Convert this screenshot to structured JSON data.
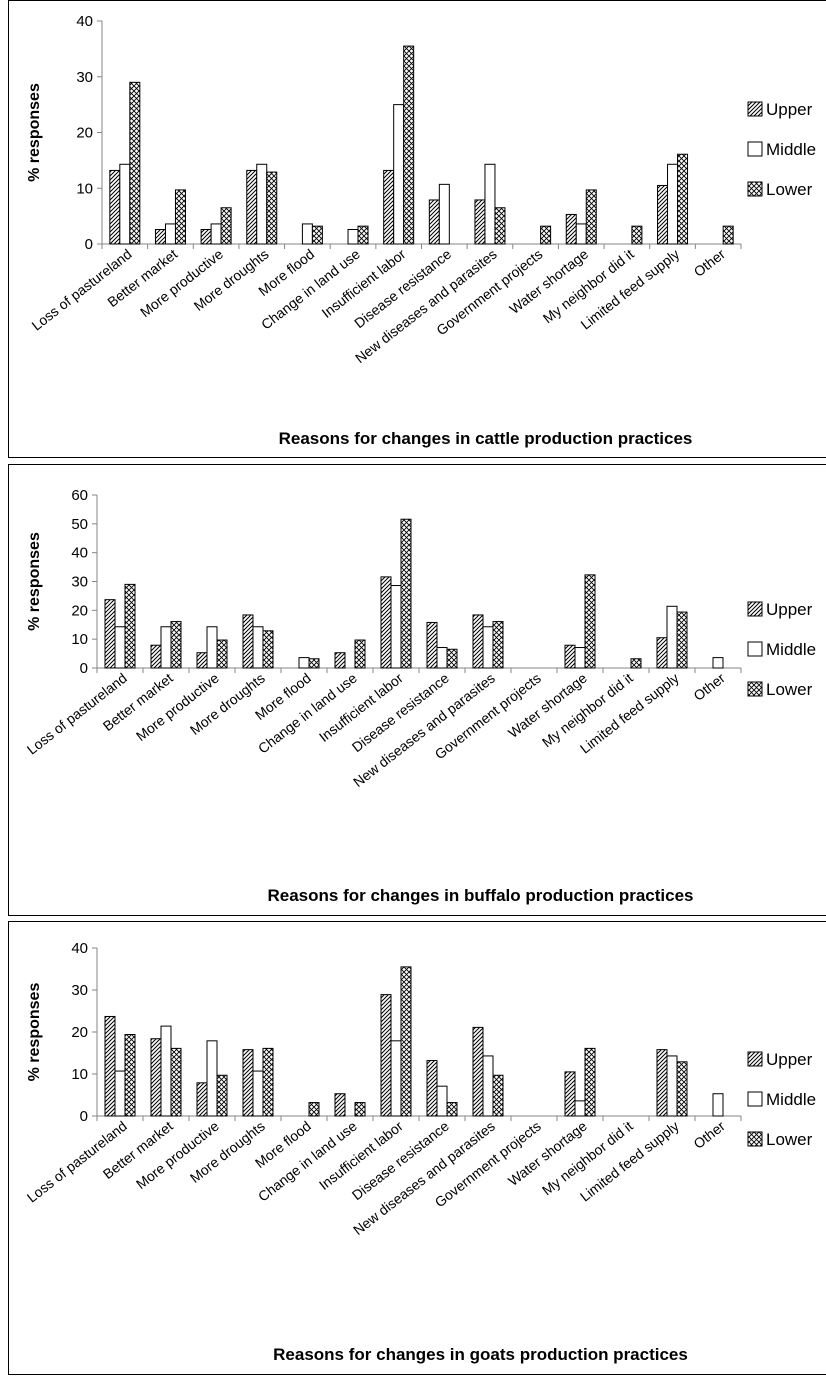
{
  "chart_data": [
    {
      "type": "bar",
      "title": "",
      "xlabel": "Reasons for changes in cattle production practices",
      "ylabel": "% responses",
      "ylim": [
        0,
        40
      ],
      "yticks": [
        "0",
        "10",
        "20",
        "30",
        "40"
      ],
      "categories": [
        "Loss of pastureland",
        "Better market",
        "More productive",
        "More droughts",
        "More flood",
        "Change in land use",
        "Insufficient labor",
        "Disease resistance",
        "New diseases and parasites",
        "Government projects",
        "Water shortage",
        "My neighbor did it",
        "Limited feed supply",
        "Other"
      ],
      "series": [
        {
          "name": "Upper",
          "pattern": "diag",
          "values": [
            13.2,
            2.6,
            2.6,
            13.2,
            0,
            0,
            13.2,
            7.9,
            7.9,
            0,
            5.3,
            0,
            10.5,
            0
          ]
        },
        {
          "name": "Middle",
          "pattern": "none",
          "values": [
            14.3,
            3.6,
            3.6,
            14.3,
            3.6,
            2.6,
            25.0,
            10.7,
            14.3,
            0,
            3.6,
            0,
            14.3,
            0
          ]
        },
        {
          "name": "Lower",
          "pattern": "cross",
          "values": [
            29.0,
            9.7,
            6.5,
            12.9,
            3.2,
            3.2,
            35.5,
            0,
            6.5,
            3.2,
            9.7,
            3.2,
            16.1,
            3.2
          ]
        }
      ],
      "legend_position": "right"
    },
    {
      "type": "bar",
      "title": "",
      "xlabel": "Reasons for changes in buffalo production practices",
      "ylabel": "% responses",
      "ylim": [
        0,
        60
      ],
      "yticks": [
        "0",
        "10",
        "20",
        "30",
        "40",
        "50",
        "60"
      ],
      "categories": [
        "Loss of pastureland",
        "Better market",
        "More productive",
        "More droughts",
        "More flood",
        "Change in land use",
        "Insufficient labor",
        "Disease resistance",
        "New diseases and parasites",
        "Government projects",
        "Water shortage",
        "My neighbor did it",
        "Limited feed supply",
        "Other"
      ],
      "series": [
        {
          "name": "Upper",
          "pattern": "diag",
          "values": [
            23.7,
            7.9,
            5.3,
            18.4,
            0,
            5.3,
            31.6,
            15.8,
            18.4,
            0,
            7.9,
            0,
            10.5,
            0
          ]
        },
        {
          "name": "Middle",
          "pattern": "none",
          "values": [
            14.3,
            14.3,
            14.3,
            14.3,
            3.6,
            0,
            28.6,
            7.1,
            14.3,
            0,
            7.1,
            0,
            21.4,
            3.6
          ]
        },
        {
          "name": "Lower",
          "pattern": "cross",
          "values": [
            29.0,
            16.1,
            9.7,
            12.9,
            3.2,
            9.7,
            51.6,
            6.5,
            16.1,
            0,
            32.3,
            3.2,
            19.4,
            0
          ]
        }
      ],
      "legend_position": "right"
    },
    {
      "type": "bar",
      "title": "",
      "xlabel": "Reasons for changes in goats production practices",
      "ylabel": "% responses",
      "ylim": [
        0,
        40
      ],
      "yticks": [
        "0",
        "10",
        "20",
        "30",
        "40"
      ],
      "categories": [
        "Loss of pastureland",
        "Better market",
        "More productive",
        "More droughts",
        "More flood",
        "Change in land use",
        "Insufficient labor",
        "Disease resistance",
        "New diseases and parasites",
        "Government projects",
        "Water shortage",
        "My neighbor did it",
        "Limited feed supply",
        "Other"
      ],
      "series": [
        {
          "name": "Upper",
          "pattern": "diag",
          "values": [
            23.7,
            18.4,
            7.9,
            15.8,
            0,
            5.3,
            28.9,
            13.2,
            21.1,
            0,
            10.5,
            0,
            15.8,
            0
          ]
        },
        {
          "name": "Middle",
          "pattern": "none",
          "values": [
            10.7,
            21.4,
            17.9,
            10.7,
            0,
            0,
            17.9,
            7.1,
            14.3,
            0,
            3.6,
            0,
            14.3,
            5.3
          ]
        },
        {
          "name": "Lower",
          "pattern": "cross",
          "values": [
            19.4,
            16.1,
            9.7,
            16.1,
            3.2,
            3.2,
            35.5,
            3.2,
            9.7,
            0,
            16.1,
            0,
            12.9,
            0
          ]
        }
      ],
      "legend_position": "right"
    }
  ]
}
